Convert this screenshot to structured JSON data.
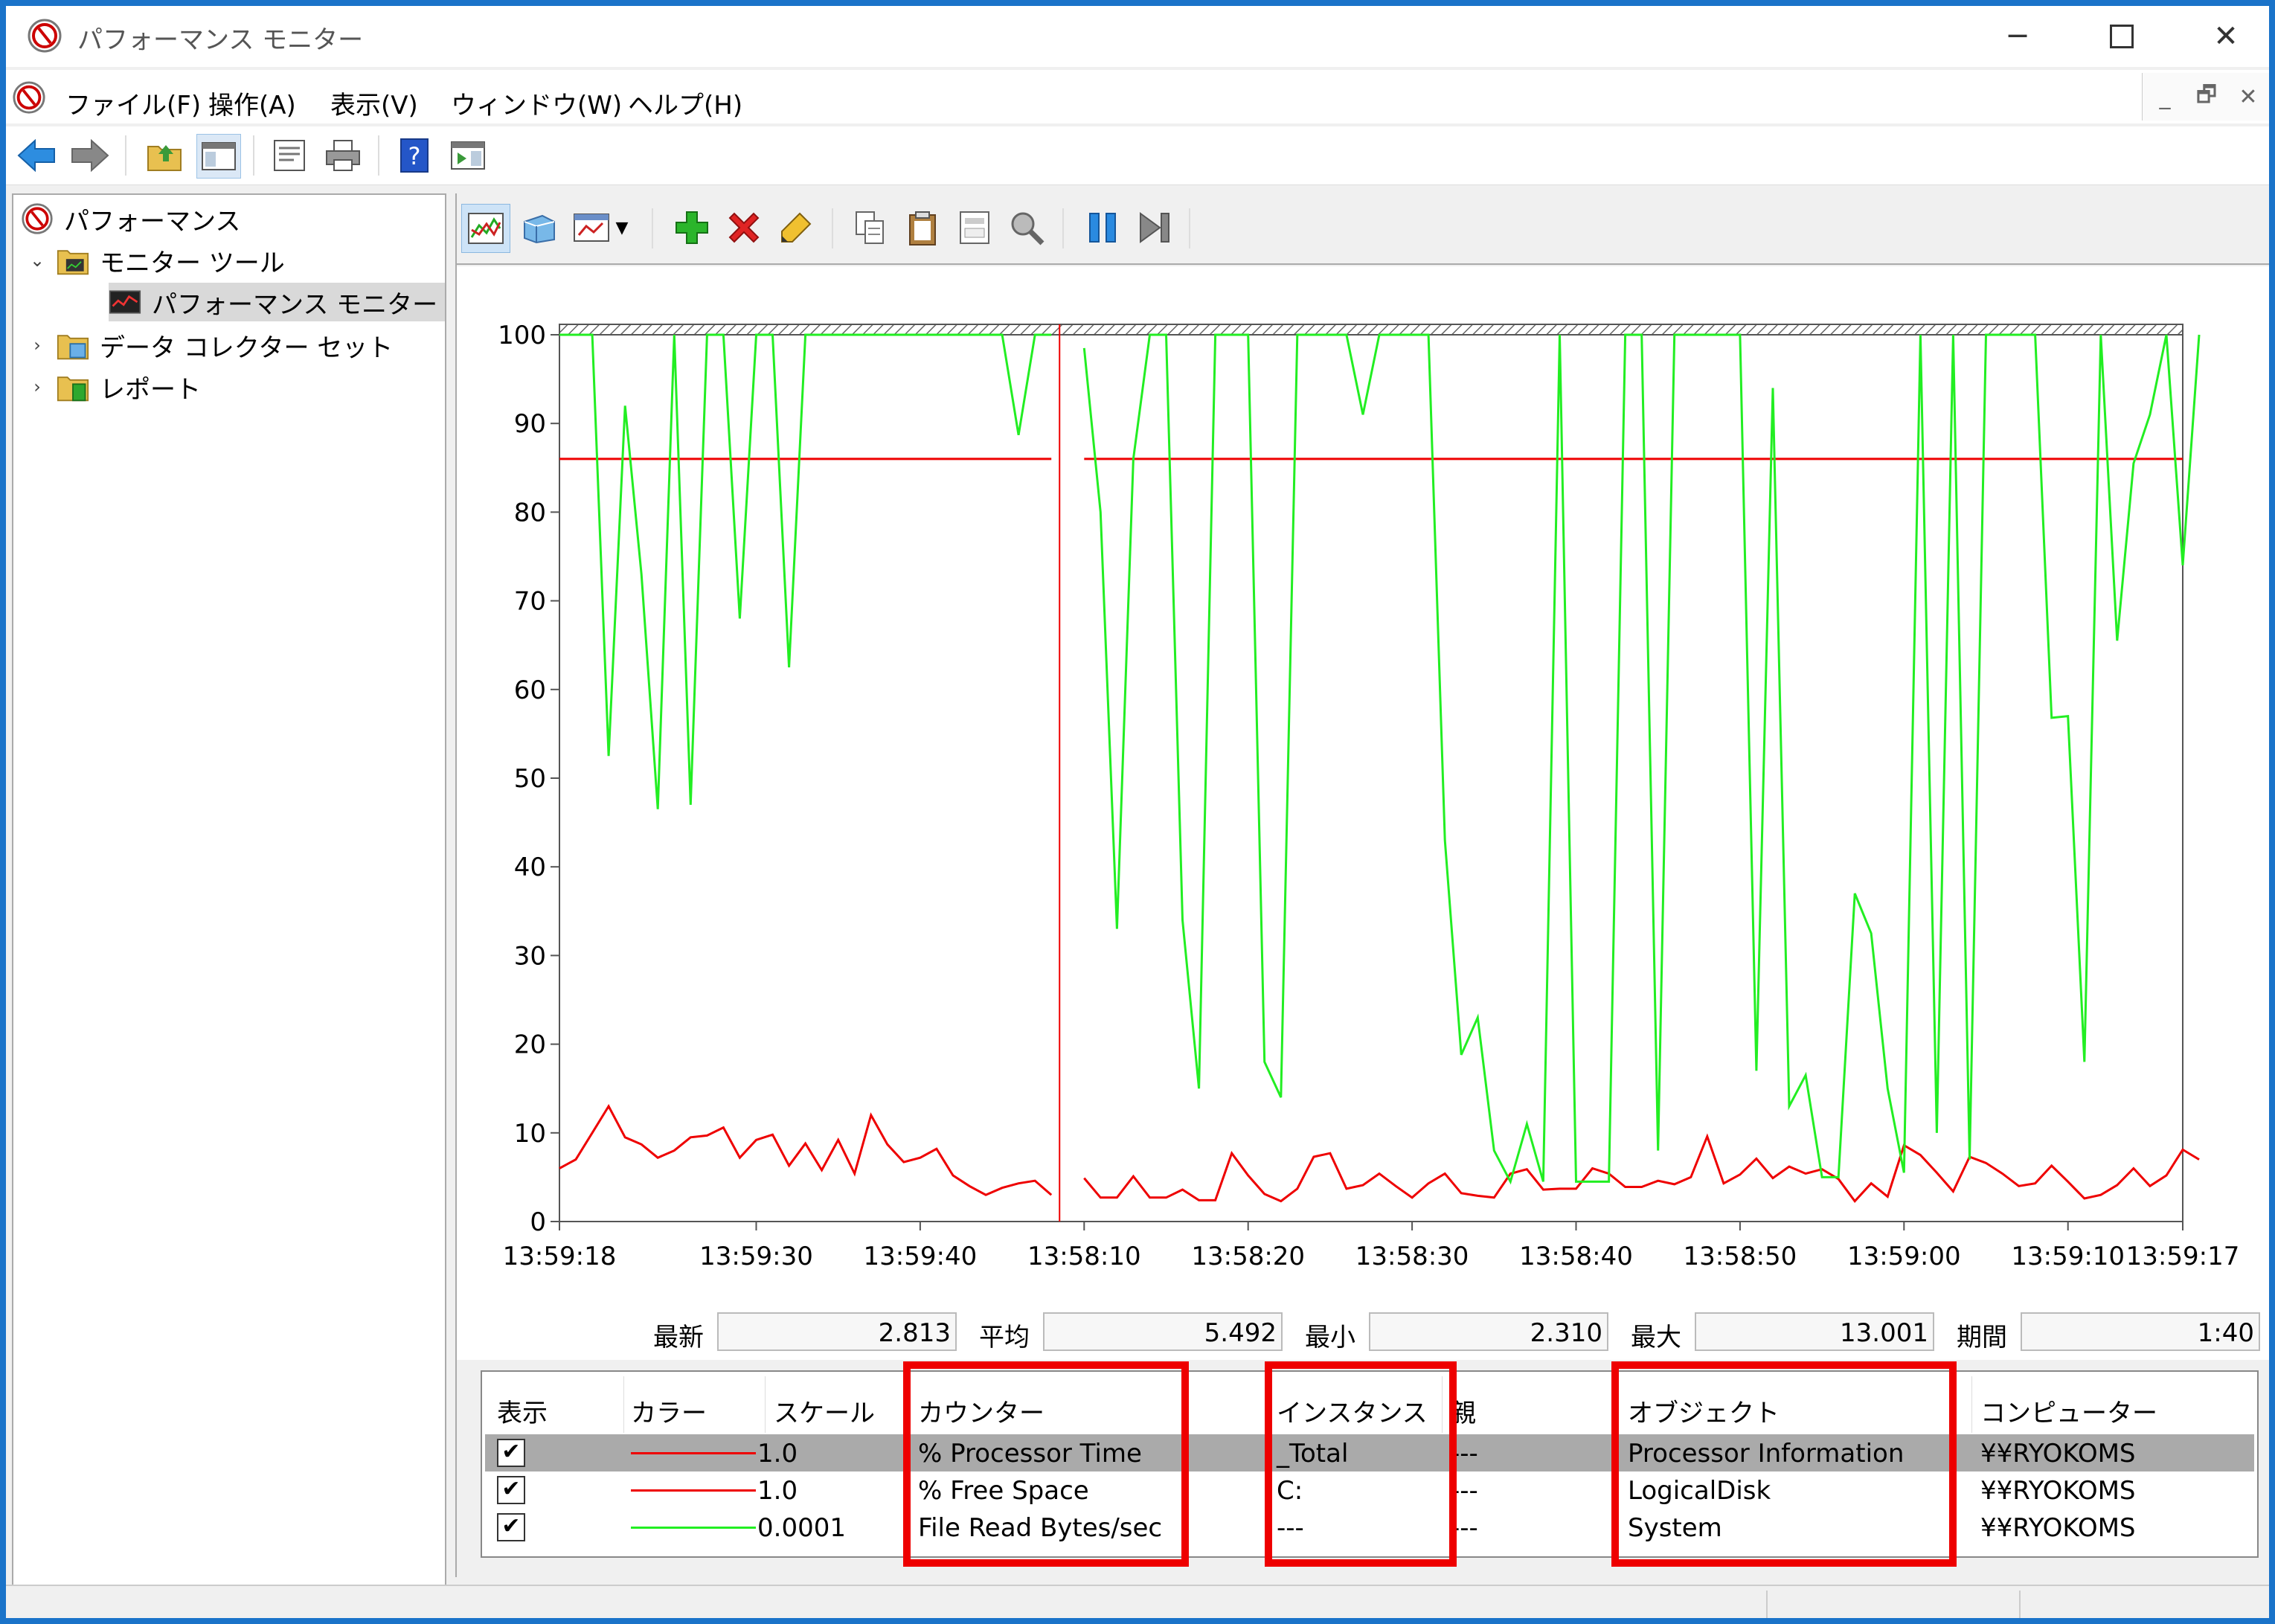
{
  "window": {
    "title": "パフォーマンス モニター"
  },
  "menu": [
    "ファイル(F)",
    "操作(A)",
    "表示(V)",
    "ウィンドウ(W)",
    "ヘルプ(H)"
  ],
  "tree": {
    "root": "パフォーマンス",
    "monitor_tools": "モニター ツール",
    "perf_monitor": "パフォーマンス モニター",
    "data_collector": "データ コレクター セット",
    "reports": "レポート"
  },
  "stats": {
    "latest_label": "最新",
    "latest": "2.813",
    "avg_label": "平均",
    "avg": "5.492",
    "min_label": "最小",
    "min": "2.310",
    "max_label": "最大",
    "max": "13.001",
    "period_label": "期間",
    "period": "1:40"
  },
  "legend": {
    "headers": {
      "show": "表示",
      "color": "カラー",
      "scale": "スケール",
      "counter": "カウンター",
      "instance": "インスタンス",
      "parent": "親",
      "object": "オブジェクト",
      "computer": "コンピューター"
    },
    "rows": [
      {
        "color": "#ee0000",
        "scale": "1.0",
        "counter": "% Processor Time",
        "instance": "_Total",
        "parent": "---",
        "object": "Processor Information",
        "computer": "¥¥RYOKOMS"
      },
      {
        "color": "#ee0000",
        "scale": "1.0",
        "counter": "% Free Space",
        "instance": "C:",
        "parent": "---",
        "object": "LogicalDisk",
        "computer": "¥¥RYOKOMS"
      },
      {
        "color": "#22ee22",
        "scale": "0.0001",
        "counter": "File Read Bytes/sec",
        "instance": "---",
        "parent": "---",
        "object": "System",
        "computer": "¥¥RYOKOMS"
      }
    ]
  },
  "chart_data": {
    "type": "line",
    "title": "",
    "ylim": [
      0,
      100
    ],
    "yticks": [
      0,
      10,
      20,
      30,
      40,
      50,
      60,
      70,
      80,
      90,
      100
    ],
    "xticks": [
      "13:59:18",
      "13:59:30",
      "13:59:40",
      "13:58:10",
      "13:58:20",
      "13:58:30",
      "13:58:40",
      "13:58:50",
      "13:59:00",
      "13:59:10",
      "13:59:17"
    ],
    "xtick_index": [
      0,
      12,
      22,
      32,
      42,
      52,
      62,
      72,
      82,
      92,
      99
    ],
    "points": 100,
    "current_index": 30,
    "grid": false,
    "series": [
      {
        "color": "#ee0000",
        "values": [
          6,
          7,
          10,
          13,
          9.5,
          8.7,
          7.2,
          8,
          9.5,
          9.7,
          10.6,
          7.2,
          9.2,
          9.8,
          6.3,
          8.8,
          5.8,
          9.2,
          5.4,
          12,
          8.7,
          6.7,
          7.2,
          8.2,
          5.2,
          4,
          3,
          3.8,
          4.3,
          4.6,
          3,
          null,
          4.9,
          2.7,
          2.7,
          5.1,
          2.7,
          2.7,
          3.6,
          2.4,
          2.4,
          7.7,
          5.2,
          3.1,
          2.3,
          3.7,
          7.3,
          7.7,
          3.7,
          4.1,
          5.4,
          4,
          2.7,
          4.3,
          5.4,
          3.2,
          2.9,
          2.7,
          5.4,
          5.9,
          3.6,
          3.7,
          3.7,
          6,
          5.4,
          3.9,
          3.9,
          4.6,
          4.2,
          5,
          9.6,
          4.3,
          5.3,
          7.1,
          4.9,
          6.2,
          5.4,
          5.9,
          4.8,
          2.3,
          4.3,
          2.8,
          8.6,
          7.5,
          5.5,
          3.4,
          7.3,
          6.6,
          5.4,
          4,
          4.3,
          6.3,
          4.5,
          2.6,
          3,
          4.1,
          6,
          4,
          5.2,
          8.1,
          7
        ]
      },
      {
        "color": "#ee0000",
        "values": [
          86,
          86,
          86,
          86,
          86,
          86,
          86,
          86,
          86,
          86,
          86,
          86,
          86,
          86,
          86,
          86,
          86,
          86,
          86,
          86,
          86,
          86,
          86,
          86,
          86,
          86,
          86,
          86,
          86,
          86,
          86,
          null,
          86,
          86,
          86,
          86,
          86,
          86,
          86,
          86,
          86,
          86,
          86,
          86,
          86,
          86,
          86,
          86,
          86,
          86,
          86,
          86,
          86,
          86,
          86,
          86,
          86,
          86,
          86,
          86,
          86,
          86,
          86,
          86,
          86,
          86,
          86,
          86,
          86,
          86,
          86,
          86,
          86,
          86,
          86,
          86,
          86,
          86,
          86,
          86,
          86,
          86,
          86,
          86,
          86,
          86,
          86,
          86,
          86,
          86,
          86,
          86,
          86,
          86,
          86,
          86,
          86,
          86,
          86,
          86
        ]
      },
      {
        "color": "#22ee22",
        "values": [
          101,
          101,
          101,
          52.5,
          92,
          73,
          46.5,
          101,
          47,
          101,
          101,
          68,
          101,
          101,
          62.5,
          101,
          101,
          101,
          101,
          101,
          101,
          101,
          101,
          101,
          101,
          101,
          101,
          100.5,
          88.7,
          101,
          101,
          null,
          98.5,
          80,
          33,
          86,
          101,
          101,
          34,
          15,
          101,
          101,
          101,
          18,
          14,
          101,
          101,
          101,
          101,
          91,
          101,
          101,
          101,
          101,
          43,
          18.8,
          23,
          8,
          4.5,
          11,
          4.5,
          101,
          4.5,
          4.5,
          4.5,
          101,
          101,
          8,
          101,
          101,
          101,
          101,
          101,
          17,
          94,
          13,
          16.5,
          5,
          5,
          37,
          32.5,
          15,
          5.5,
          101,
          10,
          101,
          7,
          101,
          101,
          101,
          101,
          56.8,
          57,
          18,
          101,
          65.5,
          85.5,
          91,
          101,
          74,
          101
        ]
      }
    ]
  }
}
